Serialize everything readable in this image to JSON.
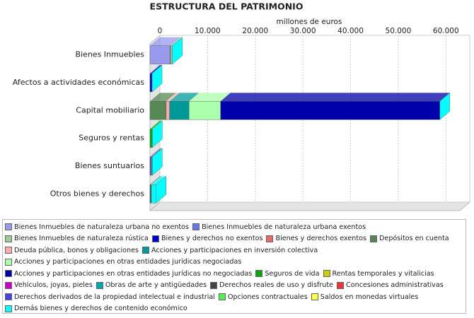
{
  "chart_data": {
    "type": "stacked-bar-horizontal",
    "title": "ESTRUCTURA DEL PATRIMONIO",
    "x_label": "millones de euros",
    "categories": [
      "Bienes Inmuebles",
      "Afectos a actividades económicas",
      "Capital mobiliario",
      "Seguros y rentas",
      "Bienes suntuarios",
      "Otros bienes y derechos"
    ],
    "xlim": [
      0,
      65000
    ],
    "xticks": [
      0,
      {
        "value": 10000,
        "label": "10.000"
      },
      {
        "value": 20000,
        "label": "20.000"
      },
      {
        "value": 30000,
        "label": "30.000"
      },
      {
        "value": 40000,
        "label": "40.000"
      },
      {
        "value": 50000,
        "label": "50.000"
      },
      {
        "value": 60000,
        "label": "60.000"
      }
    ],
    "grid": true,
    "series": [
      {
        "name": "Bienes Inmuebles de naturaleza urbana no exentos",
        "color": "#9999ee",
        "values": [
          4200,
          0,
          0,
          0,
          0,
          0
        ]
      },
      {
        "name": "Bienes Inmuebles de naturaleza urbana exentos",
        "color": "#6677ee",
        "values": [
          100,
          0,
          0,
          0,
          0,
          0
        ]
      },
      {
        "name": "Bienes Inmuebles de naturaleza rústica",
        "color": "#99cc99",
        "values": [
          400,
          0,
          0,
          0,
          0,
          0
        ]
      },
      {
        "name": "Bienes y derechos no exentos",
        "color": "#0000cc",
        "values": [
          0,
          400,
          0,
          0,
          0,
          0
        ]
      },
      {
        "name": "Bienes y derechos exentos",
        "color": "#ee6666",
        "values": [
          0,
          50,
          0,
          0,
          0,
          0
        ]
      },
      {
        "name": "Depósitos en cuenta",
        "color": "#558855",
        "values": [
          0,
          0,
          3400,
          0,
          0,
          0
        ]
      },
      {
        "name": "Deuda pública, bonos y obligaciones",
        "color": "#ffaaaa",
        "values": [
          0,
          0,
          700,
          0,
          0,
          0
        ]
      },
      {
        "name": "Acciones y participaciones en inversión colectiva",
        "color": "#009999",
        "values": [
          0,
          0,
          4100,
          0,
          0,
          0
        ]
      },
      {
        "name": "Acciones y participaciones en otras entidades jurídicas negociadas",
        "color": "#aaffaa",
        "values": [
          0,
          0,
          6600,
          0,
          0,
          0
        ]
      },
      {
        "name": "Acciones y participaciones en otras entidades jurídicas no negociadas",
        "color": "#0000aa",
        "values": [
          0,
          0,
          46000,
          0,
          0,
          0
        ]
      },
      {
        "name": "Seguros de vida",
        "color": "#00aa00",
        "values": [
          0,
          0,
          0,
          400,
          0,
          0
        ]
      },
      {
        "name": "Rentas temporales y vitalicias",
        "color": "#cccc00",
        "values": [
          0,
          0,
          0,
          100,
          0,
          0
        ]
      },
      {
        "name": "Vehículos, joyas, pieles",
        "color": "#cc00cc",
        "values": [
          0,
          0,
          0,
          0,
          200,
          0
        ]
      },
      {
        "name": "Obras de arte y antigüedades",
        "color": "#00aaaa",
        "values": [
          0,
          0,
          0,
          0,
          300,
          0
        ]
      },
      {
        "name": "Derechos reales de uso y disfrute",
        "color": "#444444",
        "values": [
          0,
          0,
          0,
          0,
          0,
          100
        ]
      },
      {
        "name": "Concesiones administrativas",
        "color": "#ee3333",
        "values": [
          0,
          0,
          0,
          0,
          0,
          50
        ]
      },
      {
        "name": "Derechos derivados de la propiedad intelectual e industrial",
        "color": "#4444dd",
        "values": [
          0,
          0,
          0,
          0,
          0,
          50
        ]
      },
      {
        "name": "Opciones contractuales",
        "color": "#55ee55",
        "values": [
          0,
          0,
          0,
          0,
          0,
          50
        ]
      },
      {
        "name": "Saldos en monedas virtuales",
        "color": "#ffff44",
        "values": [
          0,
          0,
          0,
          0,
          0,
          50
        ]
      },
      {
        "name": "Demás bienes y derechos de contenido económico",
        "color": "#00ffff",
        "values": [
          0,
          0,
          0,
          0,
          0,
          1000
        ]
      }
    ]
  }
}
